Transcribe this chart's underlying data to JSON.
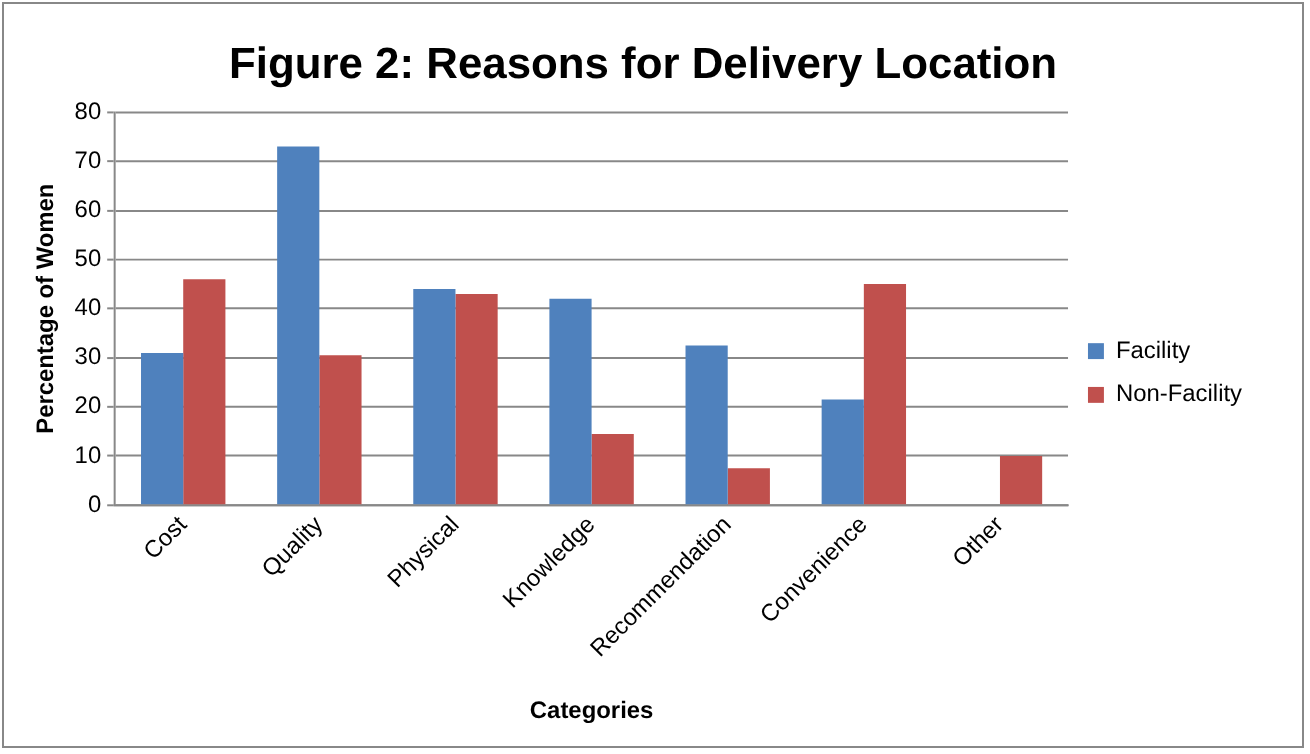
{
  "chart_data": {
    "type": "bar",
    "title": "Figure 2: Reasons for Delivery Location",
    "xlabel": "Categories",
    "ylabel": "Percentage of Women",
    "categories": [
      "Cost",
      "Quality",
      "Physical",
      "Knowledge",
      "Recommendation",
      "Convenience",
      "Other"
    ],
    "series": [
      {
        "name": "Facility",
        "color": "#4f81bd",
        "values": [
          31,
          73,
          44,
          42,
          32.5,
          21.5,
          null
        ]
      },
      {
        "name": "Non-Facility",
        "color": "#c0504d",
        "values": [
          46,
          30.5,
          43,
          14.5,
          7.5,
          45,
          10
        ]
      }
    ],
    "ylim": [
      0,
      80
    ],
    "yticks": [
      0,
      10,
      20,
      30,
      40,
      50,
      60,
      70,
      80
    ],
    "grid": "y",
    "legend": "right"
  }
}
